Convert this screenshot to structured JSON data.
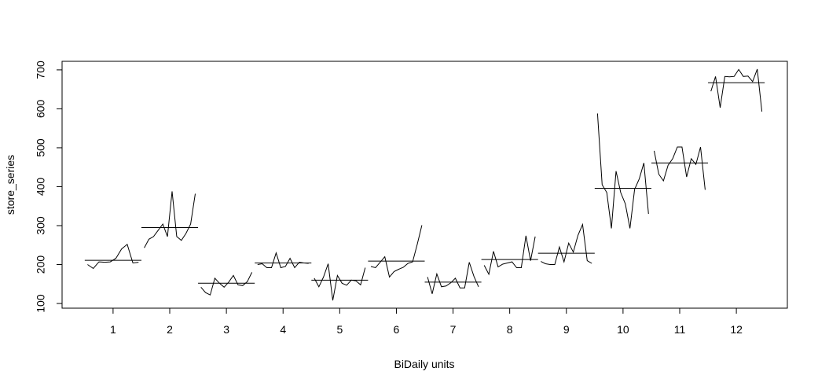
{
  "chart_data": {
    "type": "line",
    "title": "",
    "xlabel": "BiDaily units",
    "ylabel": "store_series",
    "x_ticks": [
      "1",
      "2",
      "3",
      "4",
      "5",
      "6",
      "7",
      "8",
      "9",
      "10",
      "11",
      "12"
    ],
    "y_ticks": [
      "100",
      "200",
      "300",
      "400",
      "500",
      "600",
      "700"
    ],
    "ylim": [
      88,
      722
    ],
    "xlim": [
      0.1,
      12.9
    ],
    "grid": false,
    "legend": "none",
    "line_color": "#000000",
    "series": [
      {
        "cycle": 1,
        "mean": 211,
        "values": [
          200,
          190,
          207,
          206,
          207,
          216,
          240,
          252,
          204,
          206
        ]
      },
      {
        "cycle": 2,
        "mean": 295,
        "values": [
          243,
          265,
          272,
          288,
          304,
          272,
          388,
          272,
          262,
          280,
          304,
          382
        ]
      },
      {
        "cycle": 3,
        "mean": 152,
        "values": [
          142,
          128,
          122,
          165,
          152,
          142,
          155,
          172,
          148,
          146,
          156,
          180
        ]
      },
      {
        "cycle": 4,
        "mean": 204,
        "values": [
          200,
          202,
          192,
          192,
          230,
          192,
          195,
          216,
          192,
          206,
          204,
          203
        ]
      },
      {
        "cycle": 5,
        "mean": 160,
        "values": [
          165,
          143,
          168,
          202,
          108,
          172,
          152,
          147,
          160,
          158,
          148,
          192
        ]
      },
      {
        "cycle": 6,
        "mean": 209,
        "values": [
          195,
          192,
          206,
          220,
          168,
          182,
          188,
          193,
          203,
          207,
          252,
          301
        ]
      },
      {
        "cycle": 7,
        "mean": 155,
        "values": [
          168,
          125,
          176,
          143,
          145,
          153,
          165,
          140,
          140,
          206,
          170,
          143
        ]
      },
      {
        "cycle": 8,
        "mean": 213,
        "values": [
          198,
          175,
          234,
          194,
          201,
          204,
          207,
          192,
          192,
          274,
          210,
          272
        ]
      },
      {
        "cycle": 9,
        "mean": 229,
        "values": [
          208,
          202,
          200,
          200,
          245,
          207,
          255,
          232,
          275,
          303,
          210,
          203
        ]
      },
      {
        "cycle": 10,
        "mean": 396,
        "values": [
          588,
          405,
          385,
          293,
          440,
          385,
          356,
          293,
          393,
          420,
          461,
          330
        ]
      },
      {
        "cycle": 11,
        "mean": 461,
        "values": [
          492,
          432,
          415,
          455,
          472,
          502,
          502,
          425,
          472,
          457,
          502,
          392
        ]
      },
      {
        "cycle": 12,
        "mean": 667,
        "values": [
          645,
          683,
          603,
          683,
          682,
          683,
          701,
          683,
          684,
          670,
          702,
          593
        ]
      }
    ]
  }
}
